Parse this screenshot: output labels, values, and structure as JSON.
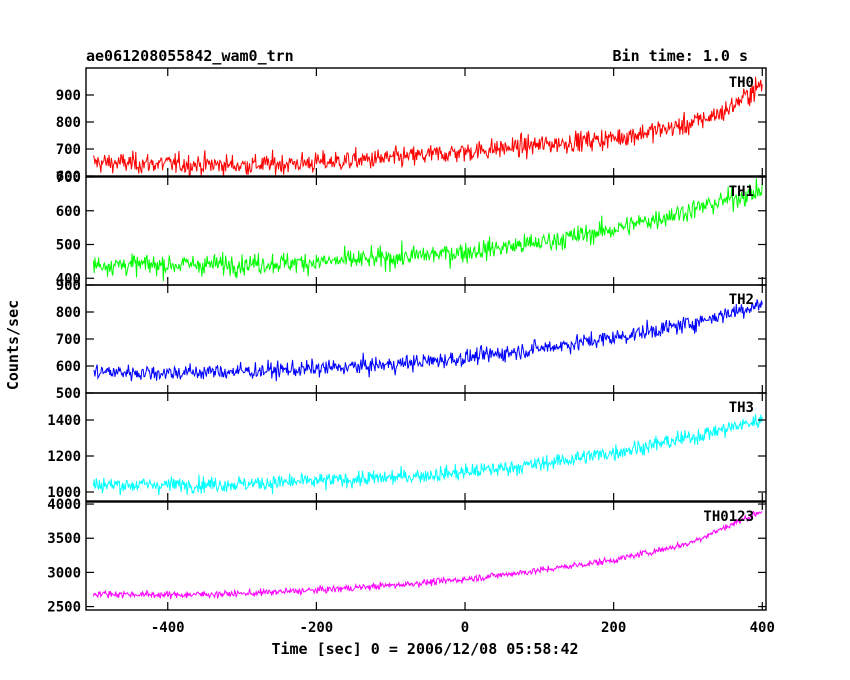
{
  "header": {
    "title": "ae061208055842_wam0_trn",
    "bin_time": "Bin time: 1.0 s"
  },
  "chart_data": {
    "type": "line",
    "xlabel": "Time [sec] 0 = 2006/12/08 05:58:42",
    "ylabel": "Counts/sec",
    "xlim": [
      -510,
      405
    ],
    "xticks": [
      -400,
      -200,
      0,
      200,
      400
    ],
    "x_range": [
      -500,
      400
    ],
    "bin_time": 1.0,
    "panels": [
      {
        "name": "TH0",
        "color": "#ff0000",
        "ylim": [
          600,
          1000
        ],
        "yticks": [
          600,
          700,
          800,
          900
        ],
        "trend": [
          [
            -500,
            650
          ],
          [
            -400,
            645
          ],
          [
            -300,
            640
          ],
          [
            -200,
            650
          ],
          [
            -100,
            665
          ],
          [
            0,
            690
          ],
          [
            100,
            715
          ],
          [
            200,
            740
          ],
          [
            300,
            790
          ],
          [
            350,
            840
          ],
          [
            400,
            940
          ]
        ],
        "noise": 35
      },
      {
        "name": "TH1",
        "color": "#00ff00",
        "ylim": [
          380,
          700
        ],
        "yticks": [
          400,
          500,
          600,
          700
        ],
        "trend": [
          [
            -500,
            440
          ],
          [
            -400,
            440
          ],
          [
            -300,
            442
          ],
          [
            -200,
            448
          ],
          [
            -100,
            460
          ],
          [
            0,
            478
          ],
          [
            100,
            505
          ],
          [
            200,
            545
          ],
          [
            300,
            600
          ],
          [
            400,
            660
          ]
        ],
        "noise": 28
      },
      {
        "name": "TH2",
        "color": "#0000ff",
        "ylim": [
          500,
          900
        ],
        "yticks": [
          500,
          600,
          700,
          800,
          900
        ],
        "trend": [
          [
            -500,
            578
          ],
          [
            -400,
            575
          ],
          [
            -300,
            580
          ],
          [
            -200,
            590
          ],
          [
            -100,
            605
          ],
          [
            0,
            630
          ],
          [
            100,
            665
          ],
          [
            200,
            705
          ],
          [
            300,
            755
          ],
          [
            400,
            830
          ]
        ],
        "noise": 28
      },
      {
        "name": "TH3",
        "color": "#00ffff",
        "ylim": [
          950,
          1550
        ],
        "yticks": [
          1000,
          1200,
          1400
        ],
        "trend": [
          [
            -500,
            1040
          ],
          [
            -400,
            1040
          ],
          [
            -300,
            1045
          ],
          [
            -200,
            1060
          ],
          [
            -100,
            1080
          ],
          [
            0,
            1110
          ],
          [
            100,
            1155
          ],
          [
            200,
            1220
          ],
          [
            300,
            1300
          ],
          [
            400,
            1400
          ]
        ],
        "noise": 40
      },
      {
        "name": "TH0123",
        "color": "#ff00ff",
        "ylim": [
          2450,
          4030
        ],
        "yticks": [
          2500,
          3000,
          3500,
          4000
        ],
        "trend": [
          [
            -500,
            2690
          ],
          [
            -400,
            2670
          ],
          [
            -300,
            2690
          ],
          [
            -200,
            2740
          ],
          [
            -100,
            2810
          ],
          [
            0,
            2900
          ],
          [
            100,
            3030
          ],
          [
            200,
            3180
          ],
          [
            300,
            3420
          ],
          [
            400,
            3900
          ]
        ],
        "noise": 45
      }
    ]
  }
}
